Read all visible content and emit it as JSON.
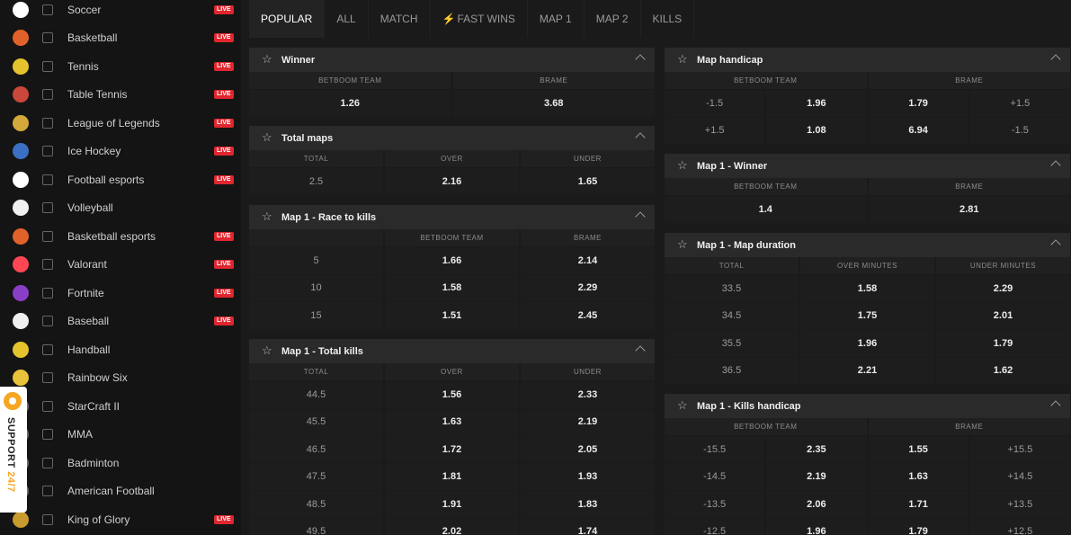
{
  "sidebar": {
    "sports": [
      {
        "label": "Soccer",
        "icon": "soccer-ball-icon",
        "color": "#ffffff",
        "live": true
      },
      {
        "label": "Basketball",
        "icon": "basketball-icon",
        "color": "#e0622a",
        "live": true
      },
      {
        "label": "Tennis",
        "icon": "tennis-ball-icon",
        "color": "#e5c32d",
        "live": true
      },
      {
        "label": "Table Tennis",
        "icon": "table-tennis-icon",
        "color": "#c9473b",
        "live": true
      },
      {
        "label": "League of Legends",
        "icon": "league-of-legends-icon",
        "color": "#d4a83a",
        "live": true
      },
      {
        "label": "Ice Hockey",
        "icon": "ice-hockey-icon",
        "color": "#3b6fc4",
        "live": true
      },
      {
        "label": "Football esports",
        "icon": "football-esports-icon",
        "color": "#ffffff",
        "live": true
      },
      {
        "label": "Volleyball",
        "icon": "volleyball-icon",
        "color": "#f0f0f0",
        "live": false
      },
      {
        "label": "Basketball esports",
        "icon": "basketball-esports-icon",
        "color": "#e0622a",
        "live": true
      },
      {
        "label": "Valorant",
        "icon": "valorant-icon",
        "color": "#ff4655",
        "live": true
      },
      {
        "label": "Fortnite",
        "icon": "fortnite-icon",
        "color": "#8a3ec8",
        "live": true
      },
      {
        "label": "Baseball",
        "icon": "baseball-icon",
        "color": "#f0f0f0",
        "live": true
      },
      {
        "label": "Handball",
        "icon": "handball-icon",
        "color": "#e5c32d",
        "live": false
      },
      {
        "label": "Rainbow Six",
        "icon": "rainbow-six-icon",
        "color": "#e8c23a",
        "live": false
      },
      {
        "label": "StarCraft II",
        "icon": "starcraft-icon",
        "color": "#6a6a6a",
        "live": false
      },
      {
        "label": "MMA",
        "icon": "mma-icon",
        "color": "#6a6a6a",
        "live": false
      },
      {
        "label": "Badminton",
        "icon": "badminton-icon",
        "color": "#6a6a6a",
        "live": false
      },
      {
        "label": "American Football",
        "icon": "american-football-icon",
        "color": "#6a6a6a",
        "live": false
      },
      {
        "label": "King of Glory",
        "icon": "king-of-glory-icon",
        "color": "#c99a2e",
        "live": true
      }
    ],
    "live_label": "LIVE"
  },
  "support": {
    "label": "SUPPORT",
    "accent": "24/7"
  },
  "tabs": [
    {
      "label": "POPULAR",
      "active": true
    },
    {
      "label": "ALL"
    },
    {
      "label": "MATCH"
    },
    {
      "label": "FAST WINS",
      "icon": "lightning-icon"
    },
    {
      "label": "MAP 1"
    },
    {
      "label": "MAP 2"
    },
    {
      "label": "KILLS"
    }
  ],
  "markets_left": [
    {
      "title": "Winner",
      "columns": [
        "BETBOOM TEAM",
        "BRAME"
      ],
      "rows": [
        [
          "1.26",
          "3.68"
        ]
      ],
      "line_cols": []
    },
    {
      "title": "Total maps",
      "columns": [
        "TOTAL",
        "OVER",
        "UNDER"
      ],
      "rows": [
        [
          "2.5",
          "2.16",
          "1.65"
        ]
      ],
      "line_cols": [
        0
      ]
    },
    {
      "title": "Map 1 - Race to kills",
      "columns": [
        "",
        "BETBOOM TEAM",
        "BRAME"
      ],
      "rows": [
        [
          "5",
          "1.66",
          "2.14"
        ],
        [
          "10",
          "1.58",
          "2.29"
        ],
        [
          "15",
          "1.51",
          "2.45"
        ]
      ],
      "line_cols": [
        0
      ]
    },
    {
      "title": "Map 1 - Total kills",
      "columns": [
        "TOTAL",
        "OVER",
        "UNDER"
      ],
      "rows": [
        [
          "44.5",
          "1.56",
          "2.33"
        ],
        [
          "45.5",
          "1.63",
          "2.19"
        ],
        [
          "46.5",
          "1.72",
          "2.05"
        ],
        [
          "47.5",
          "1.81",
          "1.93"
        ],
        [
          "48.5",
          "1.91",
          "1.83"
        ],
        [
          "49.5",
          "2.02",
          "1.74"
        ]
      ],
      "line_cols": [
        0
      ]
    }
  ],
  "markets_right": [
    {
      "title": "Map handicap",
      "columns": [
        "BETBOOM TEAM",
        "BRAME"
      ],
      "rows": [
        [
          "-1.5",
          "1.96",
          "1.79",
          "+1.5"
        ],
        [
          "+1.5",
          "1.08",
          "6.94",
          "-1.5"
        ]
      ],
      "line_cols": [
        0,
        3
      ]
    },
    {
      "title": "Map 1 - Winner",
      "columns": [
        "BETBOOM TEAM",
        "BRAME"
      ],
      "rows": [
        [
          "1.4",
          "2.81"
        ]
      ],
      "line_cols": []
    },
    {
      "title": "Map 1 - Map duration",
      "columns": [
        "TOTAL",
        "OVER MINUTES",
        "UNDER MINUTES"
      ],
      "rows": [
        [
          "33.5",
          "1.58",
          "2.29"
        ],
        [
          "34.5",
          "1.75",
          "2.01"
        ],
        [
          "35.5",
          "1.96",
          "1.79"
        ],
        [
          "36.5",
          "2.21",
          "1.62"
        ]
      ],
      "line_cols": [
        0
      ]
    },
    {
      "title": "Map 1 - Kills handicap",
      "columns": [
        "BETBOOM TEAM",
        "BRAME"
      ],
      "rows": [
        [
          "-15.5",
          "2.35",
          "1.55",
          "+15.5"
        ],
        [
          "-14.5",
          "2.19",
          "1.63",
          "+14.5"
        ],
        [
          "-13.5",
          "2.06",
          "1.71",
          "+13.5"
        ],
        [
          "-12.5",
          "1.96",
          "1.79",
          "+12.5"
        ]
      ],
      "line_cols": [
        0,
        3
      ]
    }
  ]
}
